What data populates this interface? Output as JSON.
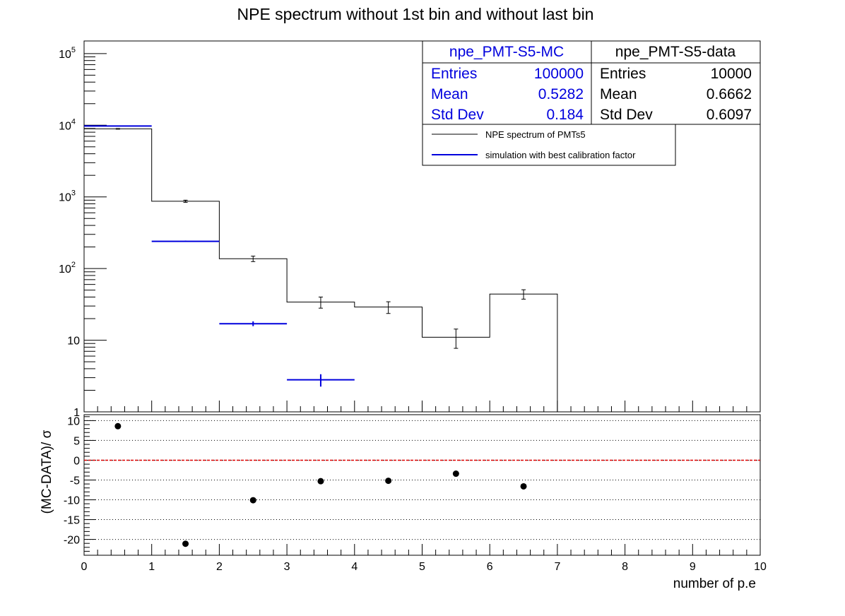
{
  "title": "NPE spectrum without 1st bin and without last bin",
  "colors": {
    "data": "#000000",
    "mc": "#0000dd",
    "zero_line": "#dd0000",
    "frame": "#000000"
  },
  "stats_mc": {
    "name": "npe_PMT-S5-MC",
    "rows": [
      {
        "label": "Entries",
        "value": "100000"
      },
      {
        "label": "Mean",
        "value": "0.5282"
      },
      {
        "label": "Std Dev",
        "value": "0.184"
      }
    ]
  },
  "stats_data": {
    "name": "npe_PMT-S5-data",
    "rows": [
      {
        "label": "Entries",
        "value": "10000"
      },
      {
        "label": "Mean",
        "value": "0.6662"
      },
      {
        "label": "Std Dev",
        "value": "0.6097"
      }
    ]
  },
  "legend": [
    {
      "label": "NPE spectrum of PMTs5",
      "color": "#000000"
    },
    {
      "label": "simulation with best calibration factor",
      "color": "#0000dd"
    }
  ],
  "xlabel": "number of p.e",
  "ylabel_ratio": "(MC-DATA)/ σ",
  "chart_data": [
    {
      "type": "line",
      "title": "NPE spectrum without 1st bin and without last bin",
      "xlim": [
        0,
        10
      ],
      "ylim": [
        1,
        150000
      ],
      "yscale": "log",
      "y_ticks": [
        {
          "value": 100000,
          "label": "10^5"
        },
        {
          "value": 10000,
          "label": "10^4"
        },
        {
          "value": 1000,
          "label": "10^3"
        },
        {
          "value": 100,
          "label": "10^2"
        },
        {
          "value": 10,
          "label": "10"
        },
        {
          "value": 1,
          "label": "1"
        }
      ],
      "series": [
        {
          "name": "NPE spectrum of PMTs5",
          "style": "histogram-step",
          "bin_edges": [
            0,
            1,
            2,
            3,
            4,
            5,
            6,
            7,
            8,
            9,
            10
          ],
          "values": [
            8900,
            870,
            137,
            34,
            29,
            11,
            44,
            0,
            0,
            0
          ],
          "errors": [
            95,
            30,
            12,
            6,
            5.4,
            3.3,
            6.6,
            0,
            0,
            0
          ]
        },
        {
          "name": "simulation with best calibration factor",
          "style": "markers-with-xerror",
          "bin_edges": [
            0,
            1,
            2,
            3,
            4
          ],
          "values": [
            9770,
            240,
            17,
            2.8
          ],
          "errors": [
            100,
            5,
            1.3,
            0.55
          ]
        }
      ]
    },
    {
      "type": "scatter",
      "xlim": [
        0,
        10
      ],
      "ylim": [
        -24,
        11.5
      ],
      "xlabel": "number of p.e",
      "ylabel": "(MC-DATA)/ σ",
      "x_ticks": [
        0,
        1,
        2,
        3,
        4,
        5,
        6,
        7,
        8,
        9,
        10
      ],
      "y_ticks": [
        10,
        5,
        0,
        -5,
        -10,
        -15,
        -20
      ],
      "grid": "horizontal-dotted",
      "reference_line": 0,
      "x": [
        0.5,
        1.5,
        2.5,
        3.5,
        4.5,
        5.5,
        6.5
      ],
      "y": [
        8.6,
        -21.1,
        -10.1,
        -5.3,
        -5.2,
        -3.4,
        -6.6
      ]
    }
  ]
}
